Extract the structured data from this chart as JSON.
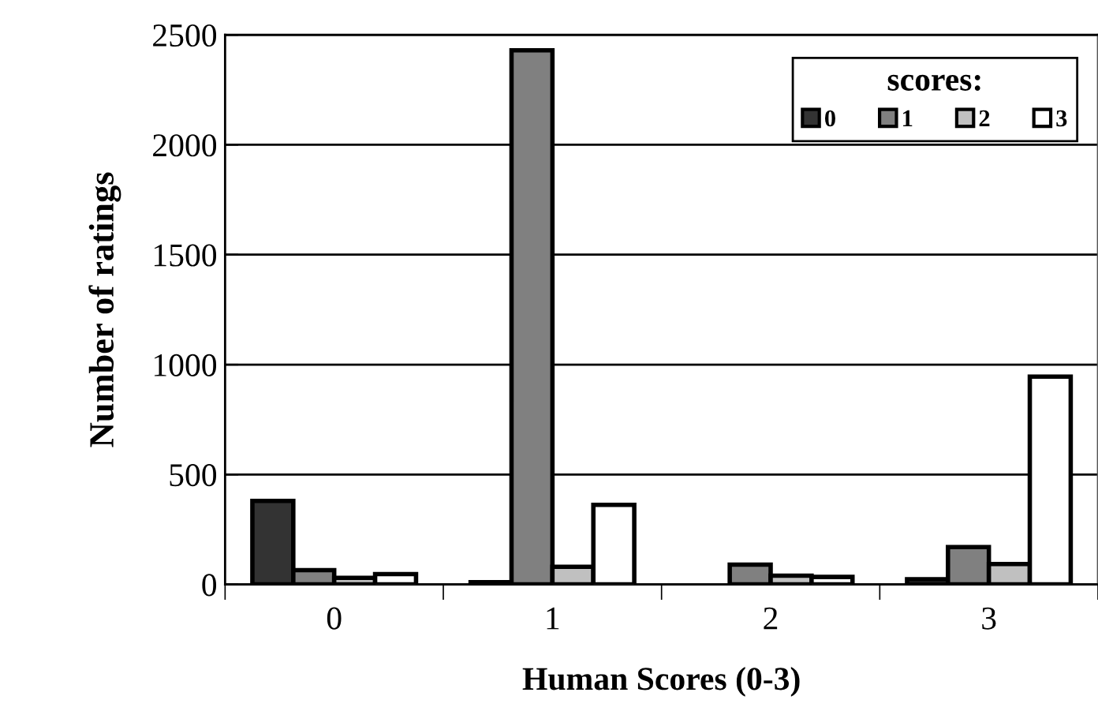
{
  "chart_data": {
    "type": "bar",
    "xlabel": "Human Scores (0-3)",
    "ylabel": "Number of ratings",
    "legend_title": "scores:",
    "categories": [
      "0",
      "1",
      "2",
      "3"
    ],
    "series": [
      {
        "name": "0",
        "color": "#333333",
        "values": [
          380,
          10,
          null,
          24
        ]
      },
      {
        "name": "1",
        "color": "#808080",
        "values": [
          65,
          2430,
          90,
          170
        ]
      },
      {
        "name": "2",
        "color": "#c0c0c0",
        "values": [
          30,
          80,
          40,
          93
        ]
      },
      {
        "name": "3",
        "color": "#ffffff",
        "values": [
          47,
          362,
          34,
          945
        ]
      }
    ],
    "ylim": [
      0,
      2500
    ],
    "yticks": [
      0,
      500,
      1000,
      1500,
      2000,
      2500
    ],
    "grid": "y",
    "legend": "top right"
  }
}
